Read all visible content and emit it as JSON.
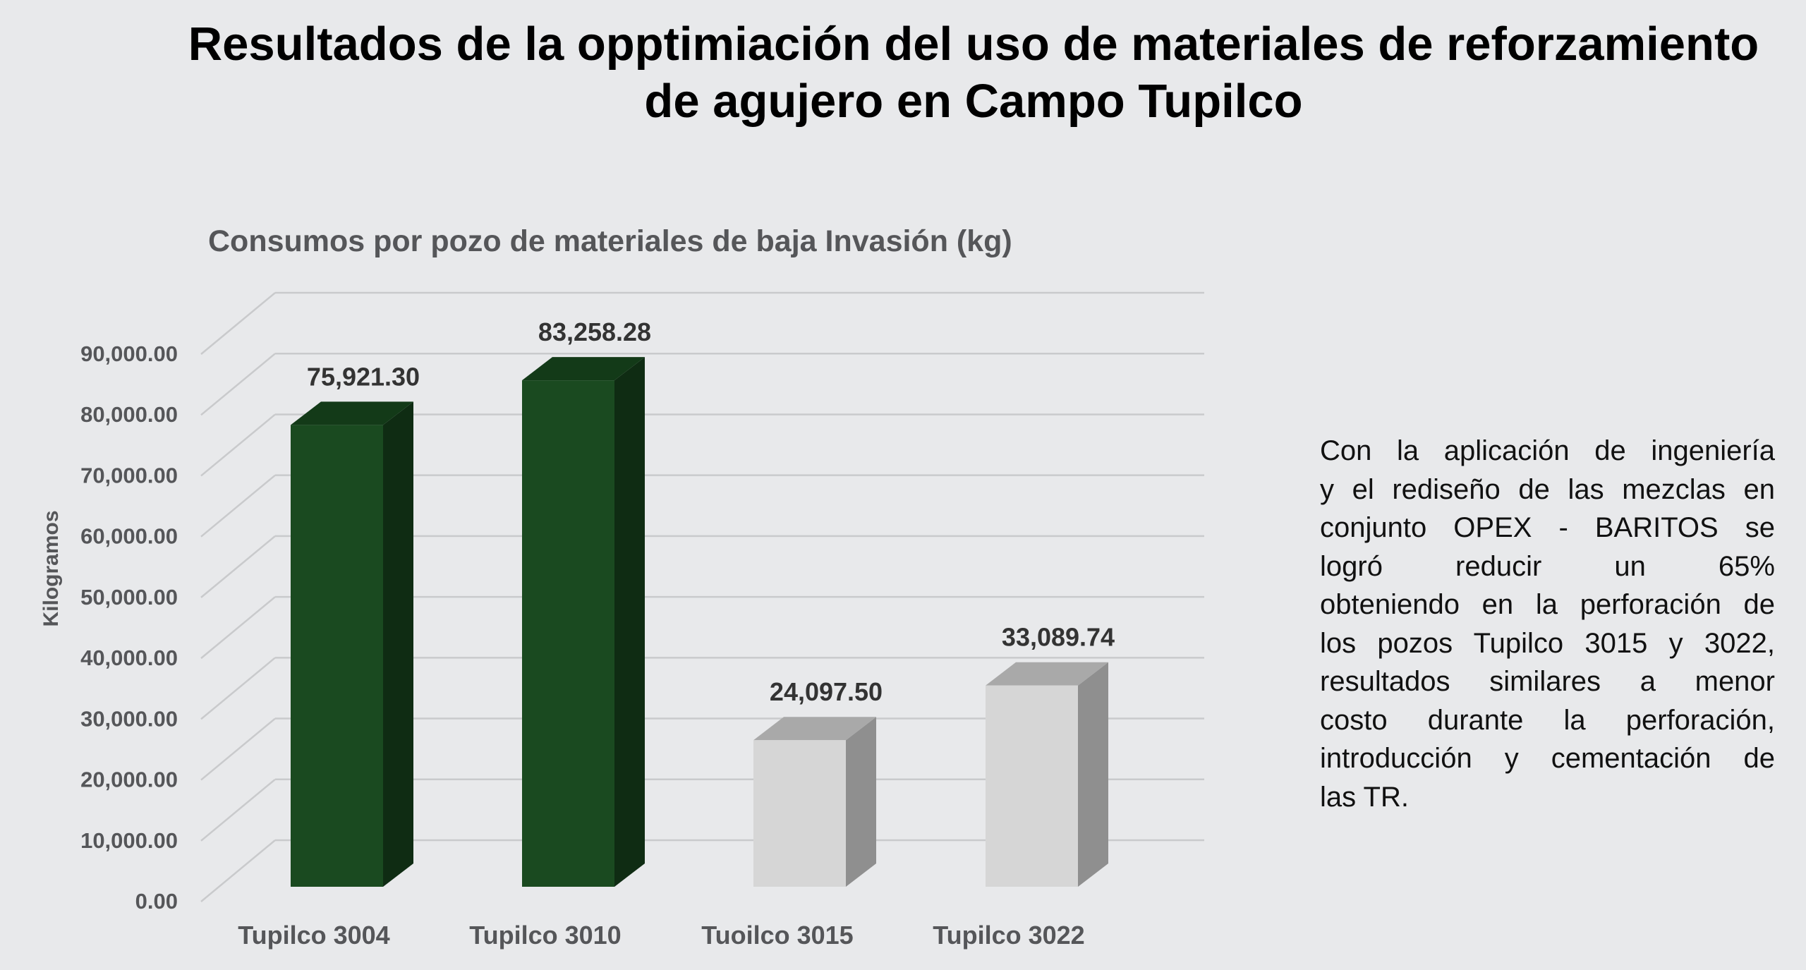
{
  "slide": {
    "title_lines": [
      "Resultados de la opptimiación del uso de materiales de reforzamiento",
      "de agujero en Campo Tupilco"
    ],
    "body_lines": [
      "Con la aplicación de ingeniería",
      "y el rediseño de las mezclas en",
      "conjunto OPEX - BARITOS se",
      "logró reducir un 65%",
      "obteniendo en la perforación de",
      "los pozos Tupilco 3015 y 3022,",
      "resultados similares a menor",
      "costo durante la perforación,",
      "introducción y cementación de",
      "las TR."
    ]
  },
  "chart_data": {
    "type": "bar",
    "title": "Consumos por pozo de materiales de baja Invasión (kg)",
    "xlabel": "",
    "ylabel": "Kilogramos",
    "ylim": [
      0,
      90000
    ],
    "y_ticks": [
      0,
      10000,
      20000,
      30000,
      40000,
      50000,
      60000,
      70000,
      80000,
      90000
    ],
    "y_tick_labels": [
      "0.00",
      "10,000.00",
      "20,000.00",
      "30,000.00",
      "40,000.00",
      "50,000.00",
      "60,000.00",
      "70,000.00",
      "80,000.00",
      "90,000.00"
    ],
    "categories": [
      "Tupilco 3004",
      "Tupilco 3010",
      "Tuoilco 3015",
      "Tupilco 3022"
    ],
    "values": [
      75921.3,
      83258.28,
      24097.5,
      33089.74
    ],
    "value_labels": [
      "75,921.30",
      "83,258.28",
      "24,097.50",
      "33,089.74"
    ],
    "grid": true,
    "style_3d": true,
    "colors": {
      "green_front": "#1a4a20",
      "green_side": "#0f2c13",
      "green_top": "#133a18",
      "gray_front": "#d6d6d6",
      "gray_side": "#8f8f8f",
      "gray_top": "#a9a9a9",
      "grid": "#c9cacc",
      "axis_text": "#555659",
      "label_text": "#333333"
    },
    "bar_color_keys": [
      "green",
      "green",
      "gray",
      "gray"
    ]
  }
}
